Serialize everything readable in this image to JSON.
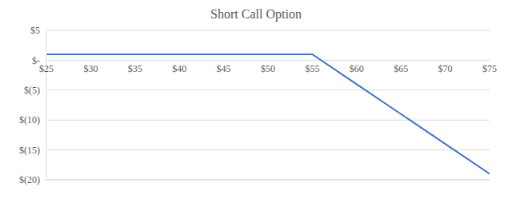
{
  "chart_data": {
    "type": "line",
    "title": "Short Call Option",
    "x": [
      25,
      30,
      35,
      40,
      45,
      50,
      55,
      60,
      65,
      70,
      75
    ],
    "values": [
      1,
      1,
      1,
      1,
      1,
      1,
      1,
      -4,
      -9,
      -14,
      -19
    ],
    "color": "#4472c4",
    "xlim": [
      25,
      75
    ],
    "xticks": [
      {
        "value": 25,
        "label": "$25"
      },
      {
        "value": 30,
        "label": "$30"
      },
      {
        "value": 35,
        "label": "$35"
      },
      {
        "value": 40,
        "label": "$40"
      },
      {
        "value": 45,
        "label": "$45"
      },
      {
        "value": 50,
        "label": "$50"
      },
      {
        "value": 55,
        "label": "$55"
      },
      {
        "value": 60,
        "label": "$60"
      },
      {
        "value": 65,
        "label": "$65"
      },
      {
        "value": 70,
        "label": "$70"
      },
      {
        "value": 75,
        "label": "$75"
      }
    ],
    "ylim": [
      -20,
      5
    ],
    "yticks": [
      {
        "value": 5,
        "label": "$5"
      },
      {
        "value": 0,
        "label": "$-"
      },
      {
        "value": -5,
        "label": "$(5)"
      },
      {
        "value": -10,
        "label": "$(10)"
      },
      {
        "value": -15,
        "label": "$(15)"
      },
      {
        "value": -20,
        "label": "$(20)"
      }
    ],
    "grid": true
  }
}
